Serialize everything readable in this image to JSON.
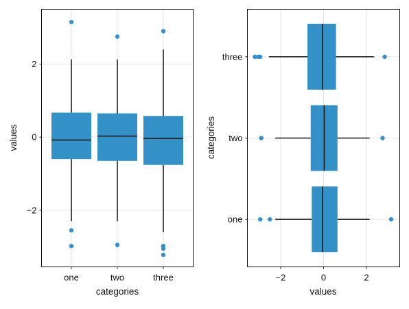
{
  "colors": {
    "box": "#3391c8",
    "outlier": "#3391c8"
  },
  "chart_data": [
    {
      "type": "boxplot",
      "orientation": "vertical",
      "xlabel": "categories",
      "ylabel": "values",
      "ylim": [
        -3.55,
        3.5
      ],
      "yticks": [
        -2,
        0,
        2
      ],
      "ytick_labels": [
        "−2",
        "0",
        "2"
      ],
      "grid": true,
      "categories": [
        "one",
        "two",
        "three"
      ],
      "boxes": [
        {
          "category": "one",
          "q1": -0.6,
          "median": -0.08,
          "q3": 0.67,
          "whisker_low": -2.3,
          "whisker_high": 2.13,
          "outliers": [
            3.15,
            -2.55,
            -2.98
          ]
        },
        {
          "category": "two",
          "q1": -0.65,
          "median": 0.03,
          "q3": 0.65,
          "whisker_low": -2.3,
          "whisker_high": 2.13,
          "outliers": [
            2.75,
            -2.95
          ]
        },
        {
          "category": "three",
          "q1": -0.76,
          "median": -0.04,
          "q3": 0.58,
          "whisker_low": -2.6,
          "whisker_high": 2.4,
          "outliers": [
            2.9,
            -2.98,
            -3.05,
            -3.22
          ]
        }
      ]
    },
    {
      "type": "boxplot",
      "orientation": "horizontal",
      "xlabel": "values",
      "ylabel": "categories",
      "xlim": [
        -3.55,
        3.55
      ],
      "xticks": [
        -2,
        0,
        2
      ],
      "xtick_labels": [
        "−2",
        "0",
        "2"
      ],
      "grid": true,
      "categories": [
        "one",
        "two",
        "three"
      ],
      "boxes": [
        {
          "category": "one",
          "q1": -0.55,
          "median": -0.05,
          "q3": 0.65,
          "whisker_low": -2.25,
          "whisker_high": 2.15,
          "outliers": [
            -2.95,
            -2.5,
            3.15
          ]
        },
        {
          "category": "two",
          "q1": -0.6,
          "median": 0.03,
          "q3": 0.65,
          "whisker_low": -2.25,
          "whisker_high": 2.15,
          "outliers": [
            -2.9,
            2.75
          ]
        },
        {
          "category": "three",
          "q1": -0.75,
          "median": -0.05,
          "q3": 0.58,
          "whisker_low": -2.55,
          "whisker_high": 2.35,
          "outliers": [
            -3.2,
            -3.05,
            -2.95,
            2.85
          ]
        }
      ]
    }
  ]
}
